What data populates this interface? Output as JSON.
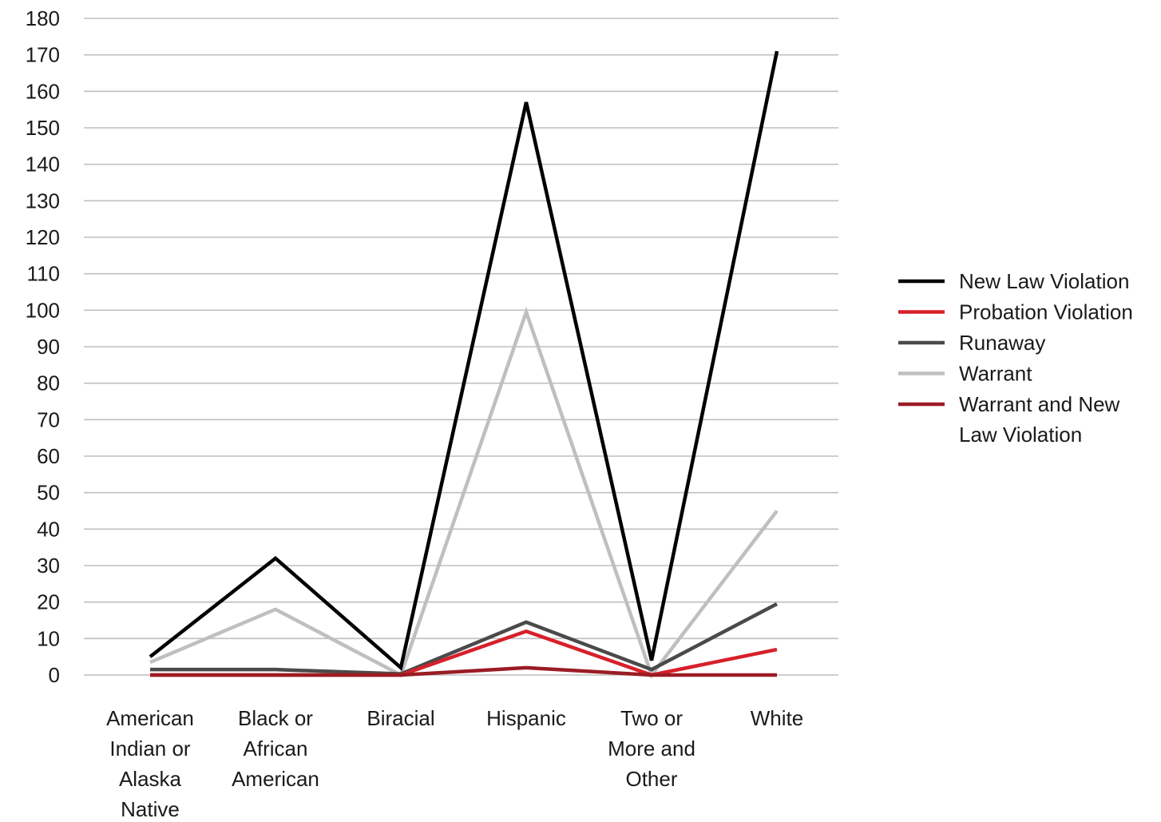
{
  "chart_data": {
    "type": "line",
    "title": "",
    "xlabel": "",
    "ylabel": "",
    "ylim": [
      0,
      180
    ],
    "ytick_step": 10,
    "grid": true,
    "legend_position": "right",
    "categories": [
      [
        "American",
        "Indian or",
        "Alaska",
        "Native"
      ],
      [
        "Black or",
        "African",
        "American"
      ],
      [
        "Biracial"
      ],
      [
        "Hispanic"
      ],
      [
        "Two or",
        "More and",
        "Other"
      ],
      [
        "White"
      ]
    ],
    "series": [
      {
        "name": [
          "New Law Violation"
        ],
        "color": "#000000",
        "values": [
          5,
          32,
          2,
          157,
          4,
          171
        ]
      },
      {
        "name": [
          "Probation Violation"
        ],
        "color": "#d7202a",
        "values": [
          0,
          0,
          0,
          12,
          0,
          7
        ]
      },
      {
        "name": [
          "Runaway"
        ],
        "color": "#4a4a4a",
        "values": [
          1.5,
          1.5,
          0.3,
          14.5,
          1.5,
          19.5
        ]
      },
      {
        "name": [
          "Warrant"
        ],
        "color": "#bfbfbf",
        "values": [
          3.5,
          18,
          0,
          99.5,
          0,
          45
        ]
      },
      {
        "name": [
          "Warrant and New",
          "Law Violation"
        ],
        "color": "#9b1c24",
        "values": [
          0,
          0,
          0,
          2,
          0,
          0
        ]
      }
    ]
  }
}
